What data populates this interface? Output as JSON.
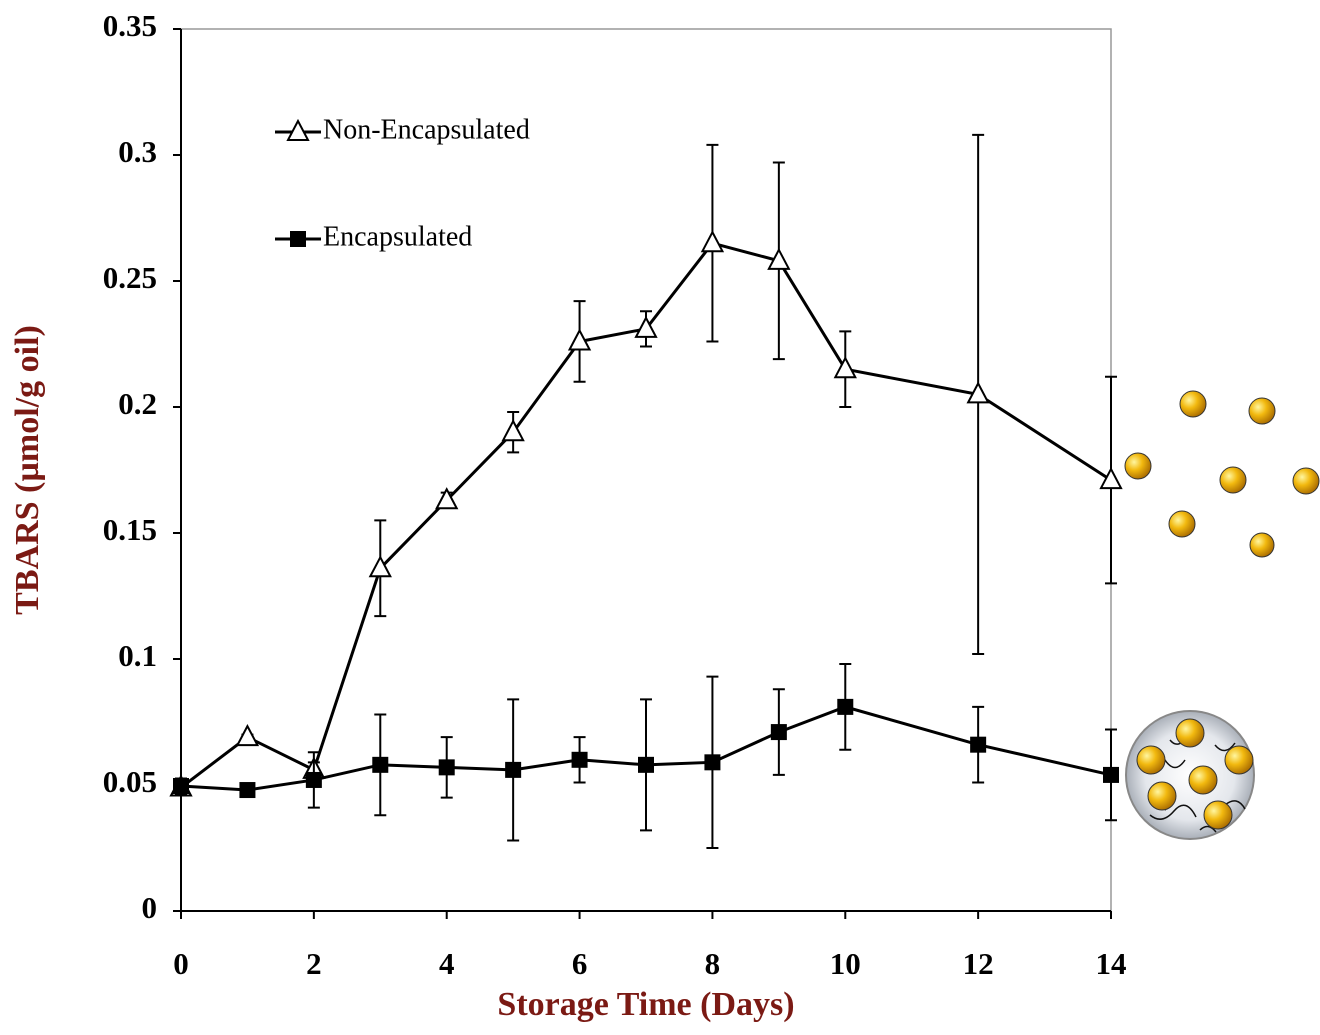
{
  "chart_data": {
    "type": "line",
    "x_label": "Storage Time (Days)",
    "y_label": "TBARS (µmol/g oil)",
    "x": [
      0,
      1,
      2,
      3,
      4,
      5,
      6,
      7,
      8,
      9,
      10,
      12,
      14
    ],
    "series": [
      {
        "name": "Non-Encapsulated",
        "color": "#000000",
        "marker": "open-triangle",
        "values": [
          0.049,
          0.069,
          0.056,
          0.136,
          0.163,
          0.19,
          0.226,
          0.231,
          0.265,
          0.258,
          0.215,
          0.205,
          0.171
        ],
        "errors": [
          0.003,
          0.001,
          0.003,
          0.019,
          0.003,
          0.008,
          0.016,
          0.007,
          0.039,
          0.039,
          0.015,
          0.103,
          0.041
        ]
      },
      {
        "name": "Encapsulated",
        "color": "#000000",
        "marker": "filled-square",
        "values": [
          0.0496,
          0.048,
          0.052,
          0.058,
          0.057,
          0.056,
          0.06,
          0.058,
          0.059,
          0.071,
          0.081,
          0.066,
          0.054
        ],
        "errors": [
          0.003,
          0.001,
          0.011,
          0.02,
          0.012,
          0.028,
          0.009,
          0.026,
          0.034,
          0.017,
          0.017,
          0.015,
          0.018
        ]
      }
    ],
    "xlim": [
      0,
      14
    ],
    "xticks": [
      0,
      2,
      4,
      6,
      8,
      10,
      12,
      14
    ],
    "ylim": [
      0,
      0.35
    ],
    "yticks": [
      0,
      0.05,
      0.1,
      0.15,
      0.2,
      0.25,
      0.3,
      0.35
    ],
    "legend": "upper left",
    "grid": false
  }
}
